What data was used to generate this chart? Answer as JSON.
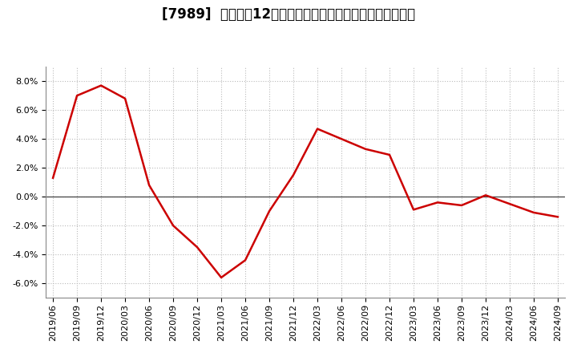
{
  "title": "[7989]  売上高の12か月移動合計の対前年同期増減率の推移",
  "x_labels": [
    "2019/06",
    "2019/09",
    "2019/12",
    "2020/03",
    "2020/06",
    "2020/09",
    "2020/12",
    "2021/03",
    "2021/06",
    "2021/09",
    "2021/12",
    "2022/03",
    "2022/06",
    "2022/09",
    "2022/12",
    "2023/03",
    "2023/06",
    "2023/09",
    "2023/12",
    "2024/03",
    "2024/06",
    "2024/09"
  ],
  "values": [
    1.3,
    7.0,
    7.7,
    6.8,
    0.8,
    -2.0,
    -3.5,
    -5.6,
    -4.4,
    -1.0,
    1.5,
    4.7,
    4.0,
    3.3,
    2.9,
    -0.9,
    -0.4,
    -0.6,
    0.1,
    -0.5,
    -1.1,
    -1.4
  ],
  "line_color": "#cc0000",
  "bg_color": "#ffffff",
  "plot_bg_color": "#ffffff",
  "grid_color": "#bbbbbb",
  "ylim": [
    -7.0,
    9.0
  ],
  "yticks": [
    -6.0,
    -4.0,
    -2.0,
    0.0,
    2.0,
    4.0,
    6.0,
    8.0
  ],
  "title_fontsize": 12,
  "tick_fontsize": 8,
  "line_width": 1.8
}
